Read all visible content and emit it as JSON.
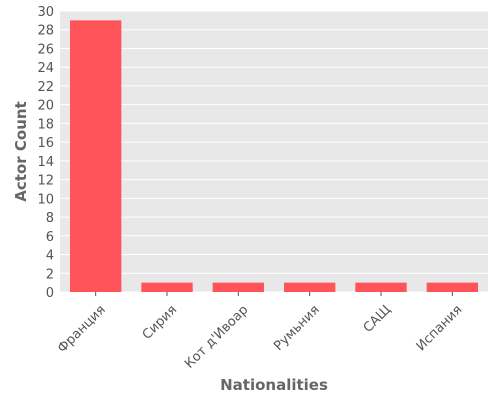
{
  "chart_data": {
    "type": "bar",
    "title": "",
    "xlabel": "Nationalities",
    "ylabel": "Actor Count",
    "categories": [
      "Франция",
      "Сирия",
      "Кот д'Ивоар",
      "Румьния",
      "САЩ",
      "Испания"
    ],
    "values": [
      29,
      1,
      1,
      1,
      1,
      1
    ],
    "ylim": [
      0,
      30
    ],
    "yticks": [
      0,
      2,
      4,
      6,
      8,
      10,
      12,
      14,
      16,
      18,
      20,
      22,
      24,
      26,
      28,
      30
    ],
    "grid": true,
    "legend": "none",
    "colors": {
      "bar": "#ff5459",
      "plot_background": "#e8e8e8",
      "grid": "#ffffff"
    }
  }
}
